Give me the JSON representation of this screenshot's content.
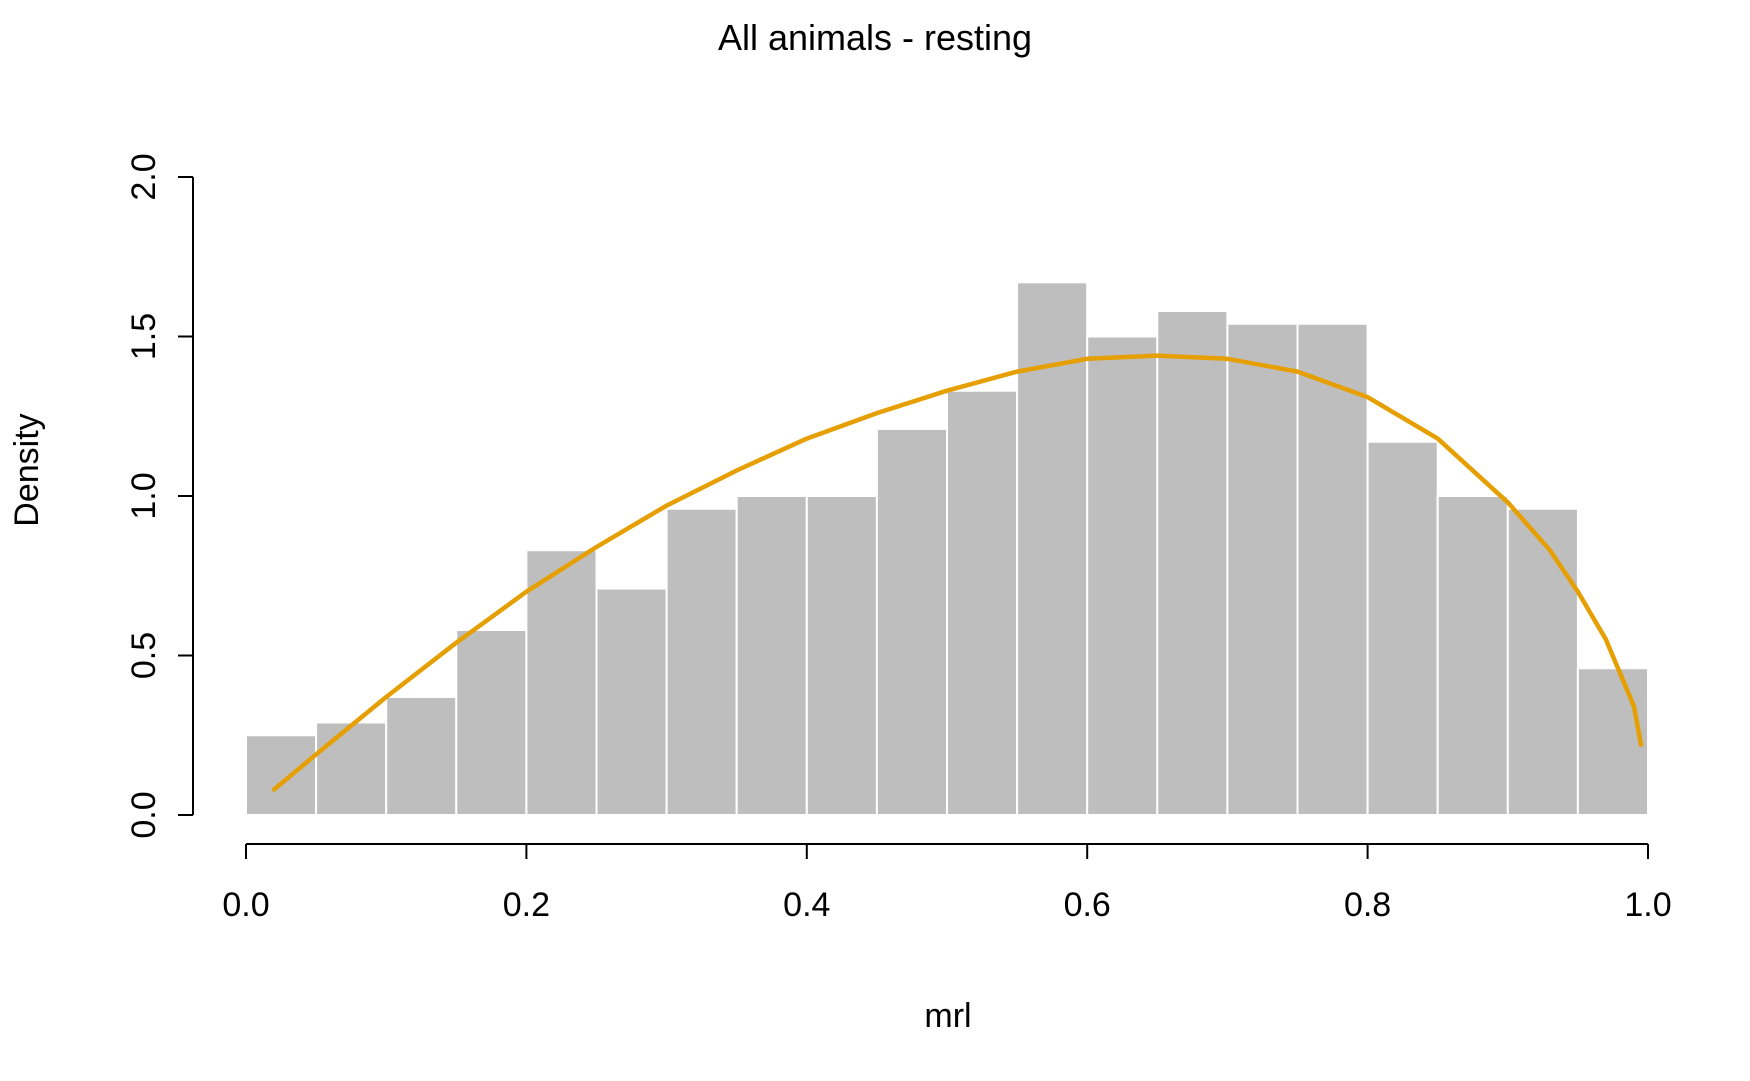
{
  "chart_data": {
    "type": "bar",
    "subtype": "histogram",
    "title": "All animals - resting",
    "xlabel": "mrl",
    "ylabel": "Density",
    "xlim": [
      0,
      1
    ],
    "ylim": [
      0,
      2
    ],
    "x_ticks": [
      "0.0",
      "0.2",
      "0.4",
      "0.6",
      "0.8",
      "1.0"
    ],
    "y_ticks": [
      "0.0",
      "0.5",
      "1.0",
      "1.5",
      "2.0"
    ],
    "bin_edges": [
      0.0,
      0.05,
      0.1,
      0.15,
      0.2,
      0.25,
      0.3,
      0.35,
      0.4,
      0.45,
      0.5,
      0.55,
      0.6,
      0.65,
      0.7,
      0.75,
      0.8,
      0.85,
      0.9,
      0.95,
      1.0
    ],
    "values": [
      0.25,
      0.29,
      0.37,
      0.58,
      0.83,
      0.71,
      0.96,
      1.0,
      1.0,
      1.21,
      1.33,
      1.67,
      1.5,
      1.58,
      1.54,
      1.54,
      1.17,
      1.0,
      0.96,
      0.46
    ],
    "bar_color": "#bebebe",
    "density_curve": {
      "color": "#e69f00",
      "x": [
        0.02,
        0.05,
        0.1,
        0.15,
        0.2,
        0.25,
        0.3,
        0.35,
        0.4,
        0.45,
        0.5,
        0.55,
        0.6,
        0.65,
        0.7,
        0.75,
        0.8,
        0.85,
        0.9,
        0.93,
        0.95,
        0.97,
        0.99,
        0.995
      ],
      "y": [
        0.08,
        0.19,
        0.37,
        0.54,
        0.7,
        0.84,
        0.97,
        1.08,
        1.18,
        1.26,
        1.33,
        1.39,
        1.43,
        1.44,
        1.43,
        1.39,
        1.31,
        1.18,
        0.98,
        0.83,
        0.7,
        0.55,
        0.34,
        0.22
      ]
    }
  }
}
